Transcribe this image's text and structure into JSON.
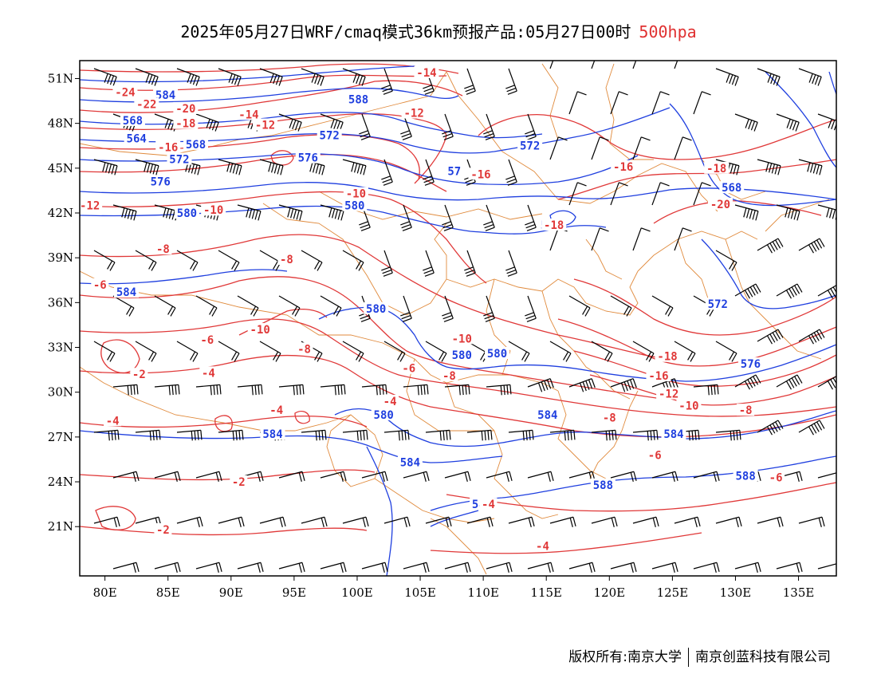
{
  "title": {
    "main": "2025年05月27日WRF/cmaq模式36km预报产品:05月27日00时",
    "level": "500hpa"
  },
  "colors": {
    "height_contour": "#1f3fdf",
    "temperature_contour": "#e03838",
    "border": "#e08a3c",
    "wind_barb": "#000000",
    "frame": "#000000"
  },
  "map": {
    "lon_range": [
      78,
      138
    ],
    "lat_range": [
      17.7,
      52.2
    ],
    "lon_ticks": [
      "80E",
      "85E",
      "90E",
      "95E",
      "100E",
      "105E",
      "110E",
      "115E",
      "120E",
      "125E",
      "130E",
      "135E"
    ],
    "lat_ticks": [
      "21N",
      "24N",
      "27N",
      "30N",
      "33N",
      "36N",
      "39N",
      "42N",
      "45N",
      "48N",
      "51N"
    ],
    "height_labels": [
      {
        "text": "584",
        "lon": 84.8,
        "lat": 49.9
      },
      {
        "text": "588",
        "lon": 100.1,
        "lat": 49.6
      },
      {
        "text": "568",
        "lon": 82.2,
        "lat": 48.2
      },
      {
        "text": "564",
        "lon": 82.5,
        "lat": 47.0
      },
      {
        "text": "568",
        "lon": 87.2,
        "lat": 46.6
      },
      {
        "text": "572",
        "lon": 97.8,
        "lat": 47.2
      },
      {
        "text": "572",
        "lon": 113.7,
        "lat": 46.5
      },
      {
        "text": "576",
        "lon": 96.1,
        "lat": 45.7
      },
      {
        "text": "572",
        "lon": 85.9,
        "lat": 45.6
      },
      {
        "text": "576",
        "lon": 84.4,
        "lat": 44.1
      },
      {
        "text": "57",
        "lon": 107.7,
        "lat": 44.8
      },
      {
        "text": "568",
        "lon": 129.7,
        "lat": 43.7
      },
      {
        "text": "580",
        "lon": 86.5,
        "lat": 42.0
      },
      {
        "text": "580",
        "lon": 99.8,
        "lat": 42.5
      },
      {
        "text": "5",
        "lon": 114.8,
        "lat": 41.2
      },
      {
        "text": "584",
        "lon": 81.7,
        "lat": 36.7
      },
      {
        "text": "572",
        "lon": 128.6,
        "lat": 35.9
      },
      {
        "text": "580",
        "lon": 101.5,
        "lat": 35.6
      },
      {
        "text": "580",
        "lon": 108.3,
        "lat": 32.5
      },
      {
        "text": "580",
        "lon": 111.1,
        "lat": 32.6
      },
      {
        "text": "576",
        "lon": 131.2,
        "lat": 31.9
      },
      {
        "text": "580",
        "lon": 102.1,
        "lat": 28.5
      },
      {
        "text": "584",
        "lon": 115.1,
        "lat": 28.5
      },
      {
        "text": "584",
        "lon": 93.3,
        "lat": 27.2
      },
      {
        "text": "584",
        "lon": 125.1,
        "lat": 27.2
      },
      {
        "text": "584",
        "lon": 104.2,
        "lat": 25.3
      },
      {
        "text": "588",
        "lon": 119.5,
        "lat": 23.8
      },
      {
        "text": "588",
        "lon": 130.8,
        "lat": 24.4
      },
      {
        "text": "588",
        "lon": 109.9,
        "lat": 22.5
      }
    ],
    "temperature_labels": [
      {
        "text": "-14",
        "lon": 105.5,
        "lat": 51.4
      },
      {
        "text": "-24",
        "lon": 81.6,
        "lat": 50.1
      },
      {
        "text": "-22",
        "lon": 83.3,
        "lat": 49.3
      },
      {
        "text": "-20",
        "lon": 86.4,
        "lat": 49.0
      },
      {
        "text": "-14",
        "lon": 91.4,
        "lat": 48.6
      },
      {
        "text": "-12",
        "lon": 104.5,
        "lat": 48.7
      },
      {
        "text": "-12",
        "lon": 92.7,
        "lat": 47.9
      },
      {
        "text": "-18",
        "lon": 86.4,
        "lat": 48.0
      },
      {
        "text": "-16",
        "lon": 85.0,
        "lat": 46.4
      },
      {
        "text": "-16",
        "lon": 109.8,
        "lat": 44.6
      },
      {
        "text": "-16",
        "lon": 121.1,
        "lat": 45.1
      },
      {
        "text": "-18",
        "lon": 128.5,
        "lat": 45.0
      },
      {
        "text": "-10",
        "lon": 99.9,
        "lat": 43.3
      },
      {
        "text": "-20",
        "lon": 128.8,
        "lat": 42.6
      },
      {
        "text": "-12",
        "lon": 78.8,
        "lat": 42.5
      },
      {
        "text": "-10",
        "lon": 88.6,
        "lat": 42.2
      },
      {
        "text": "-18",
        "lon": 115.6,
        "lat": 41.2
      },
      {
        "text": "-8",
        "lon": 84.6,
        "lat": 39.6
      },
      {
        "text": "-8",
        "lon": 94.4,
        "lat": 38.9
      },
      {
        "text": "-6",
        "lon": 79.6,
        "lat": 37.2
      },
      {
        "text": "-10",
        "lon": 92.3,
        "lat": 34.2
      },
      {
        "text": "-10",
        "lon": 108.3,
        "lat": 33.6
      },
      {
        "text": "-6",
        "lon": 88.1,
        "lat": 33.5
      },
      {
        "text": "-8",
        "lon": 95.8,
        "lat": 32.9
      },
      {
        "text": "-18",
        "lon": 124.6,
        "lat": 32.4
      },
      {
        "text": "-2",
        "lon": 82.7,
        "lat": 31.2
      },
      {
        "text": "-4",
        "lon": 88.2,
        "lat": 31.3
      },
      {
        "text": "-6",
        "lon": 104.1,
        "lat": 31.6
      },
      {
        "text": "-16",
        "lon": 123.9,
        "lat": 31.1
      },
      {
        "text": "-8",
        "lon": 107.3,
        "lat": 31.1
      },
      {
        "text": "-4",
        "lon": 102.6,
        "lat": 29.4
      },
      {
        "text": "-12",
        "lon": 124.7,
        "lat": 29.9
      },
      {
        "text": "-10",
        "lon": 126.3,
        "lat": 29.1
      },
      {
        "text": "-8",
        "lon": 130.8,
        "lat": 28.8
      },
      {
        "text": "-4",
        "lon": 93.6,
        "lat": 28.8
      },
      {
        "text": "-8",
        "lon": 120.0,
        "lat": 28.3
      },
      {
        "text": "-4",
        "lon": 80.6,
        "lat": 28.1
      },
      {
        "text": "-6",
        "lon": 123.6,
        "lat": 25.8
      },
      {
        "text": "-6",
        "lon": 133.2,
        "lat": 24.3
      },
      {
        "text": "-2",
        "lon": 90.6,
        "lat": 24.0
      },
      {
        "text": "-4",
        "lon": 110.4,
        "lat": 22.5
      },
      {
        "text": "-2",
        "lon": 84.6,
        "lat": 20.8
      },
      {
        "text": "-4",
        "lon": 114.7,
        "lat": 19.7
      }
    ]
  },
  "footer": {
    "copyright": "版权所有:南京大学",
    "company": "南京创蓝科技有限公司"
  }
}
